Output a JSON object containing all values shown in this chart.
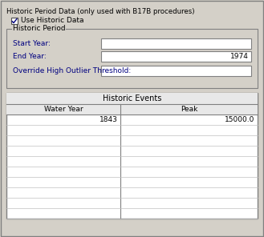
{
  "title": "Historic Period Data (only used with B17B procedures)",
  "bg_color": "#d4d0c8",
  "border_color": "#808080",
  "checkbox_label": "Use Historic Data",
  "group_label": "Historic Period",
  "fields": [
    {
      "label": "Start Year:",
      "value": ""
    },
    {
      "label": "End Year:",
      "value": "1974"
    },
    {
      "label": "Override High Outlier Threshold:",
      "value": ""
    }
  ],
  "table_title": "Historic Events",
  "table_headers": [
    "Water Year",
    "Peak"
  ],
  "table_data": [
    [
      "1843",
      "15000.0"
    ]
  ],
  "table_empty_rows": 9,
  "white": "#ffffff",
  "dark_border": "#808080",
  "light_border": "#c0c0c0",
  "header_bg": "#e8e8e8",
  "text_color": "#000000",
  "label_color": "#000080",
  "fig_w": 3.29,
  "fig_h": 2.96,
  "dpi": 100
}
